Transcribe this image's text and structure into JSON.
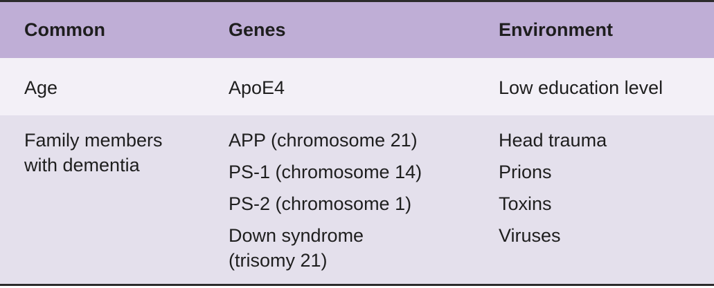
{
  "table": {
    "header": [
      "Common",
      "Genes",
      "Environment"
    ],
    "rows": [
      [
        "Age",
        "ApoE4",
        "Low education level"
      ],
      [
        "Family members with dementia",
        [
          "APP (chromosome 21)",
          "PS-1 (chromosome 14)",
          "PS-2 (chromosome 1)",
          "Down syndrome (trisomy 21)"
        ],
        [
          "Head trauma",
          "Prions",
          "Toxins",
          "Viruses"
        ]
      ]
    ]
  }
}
